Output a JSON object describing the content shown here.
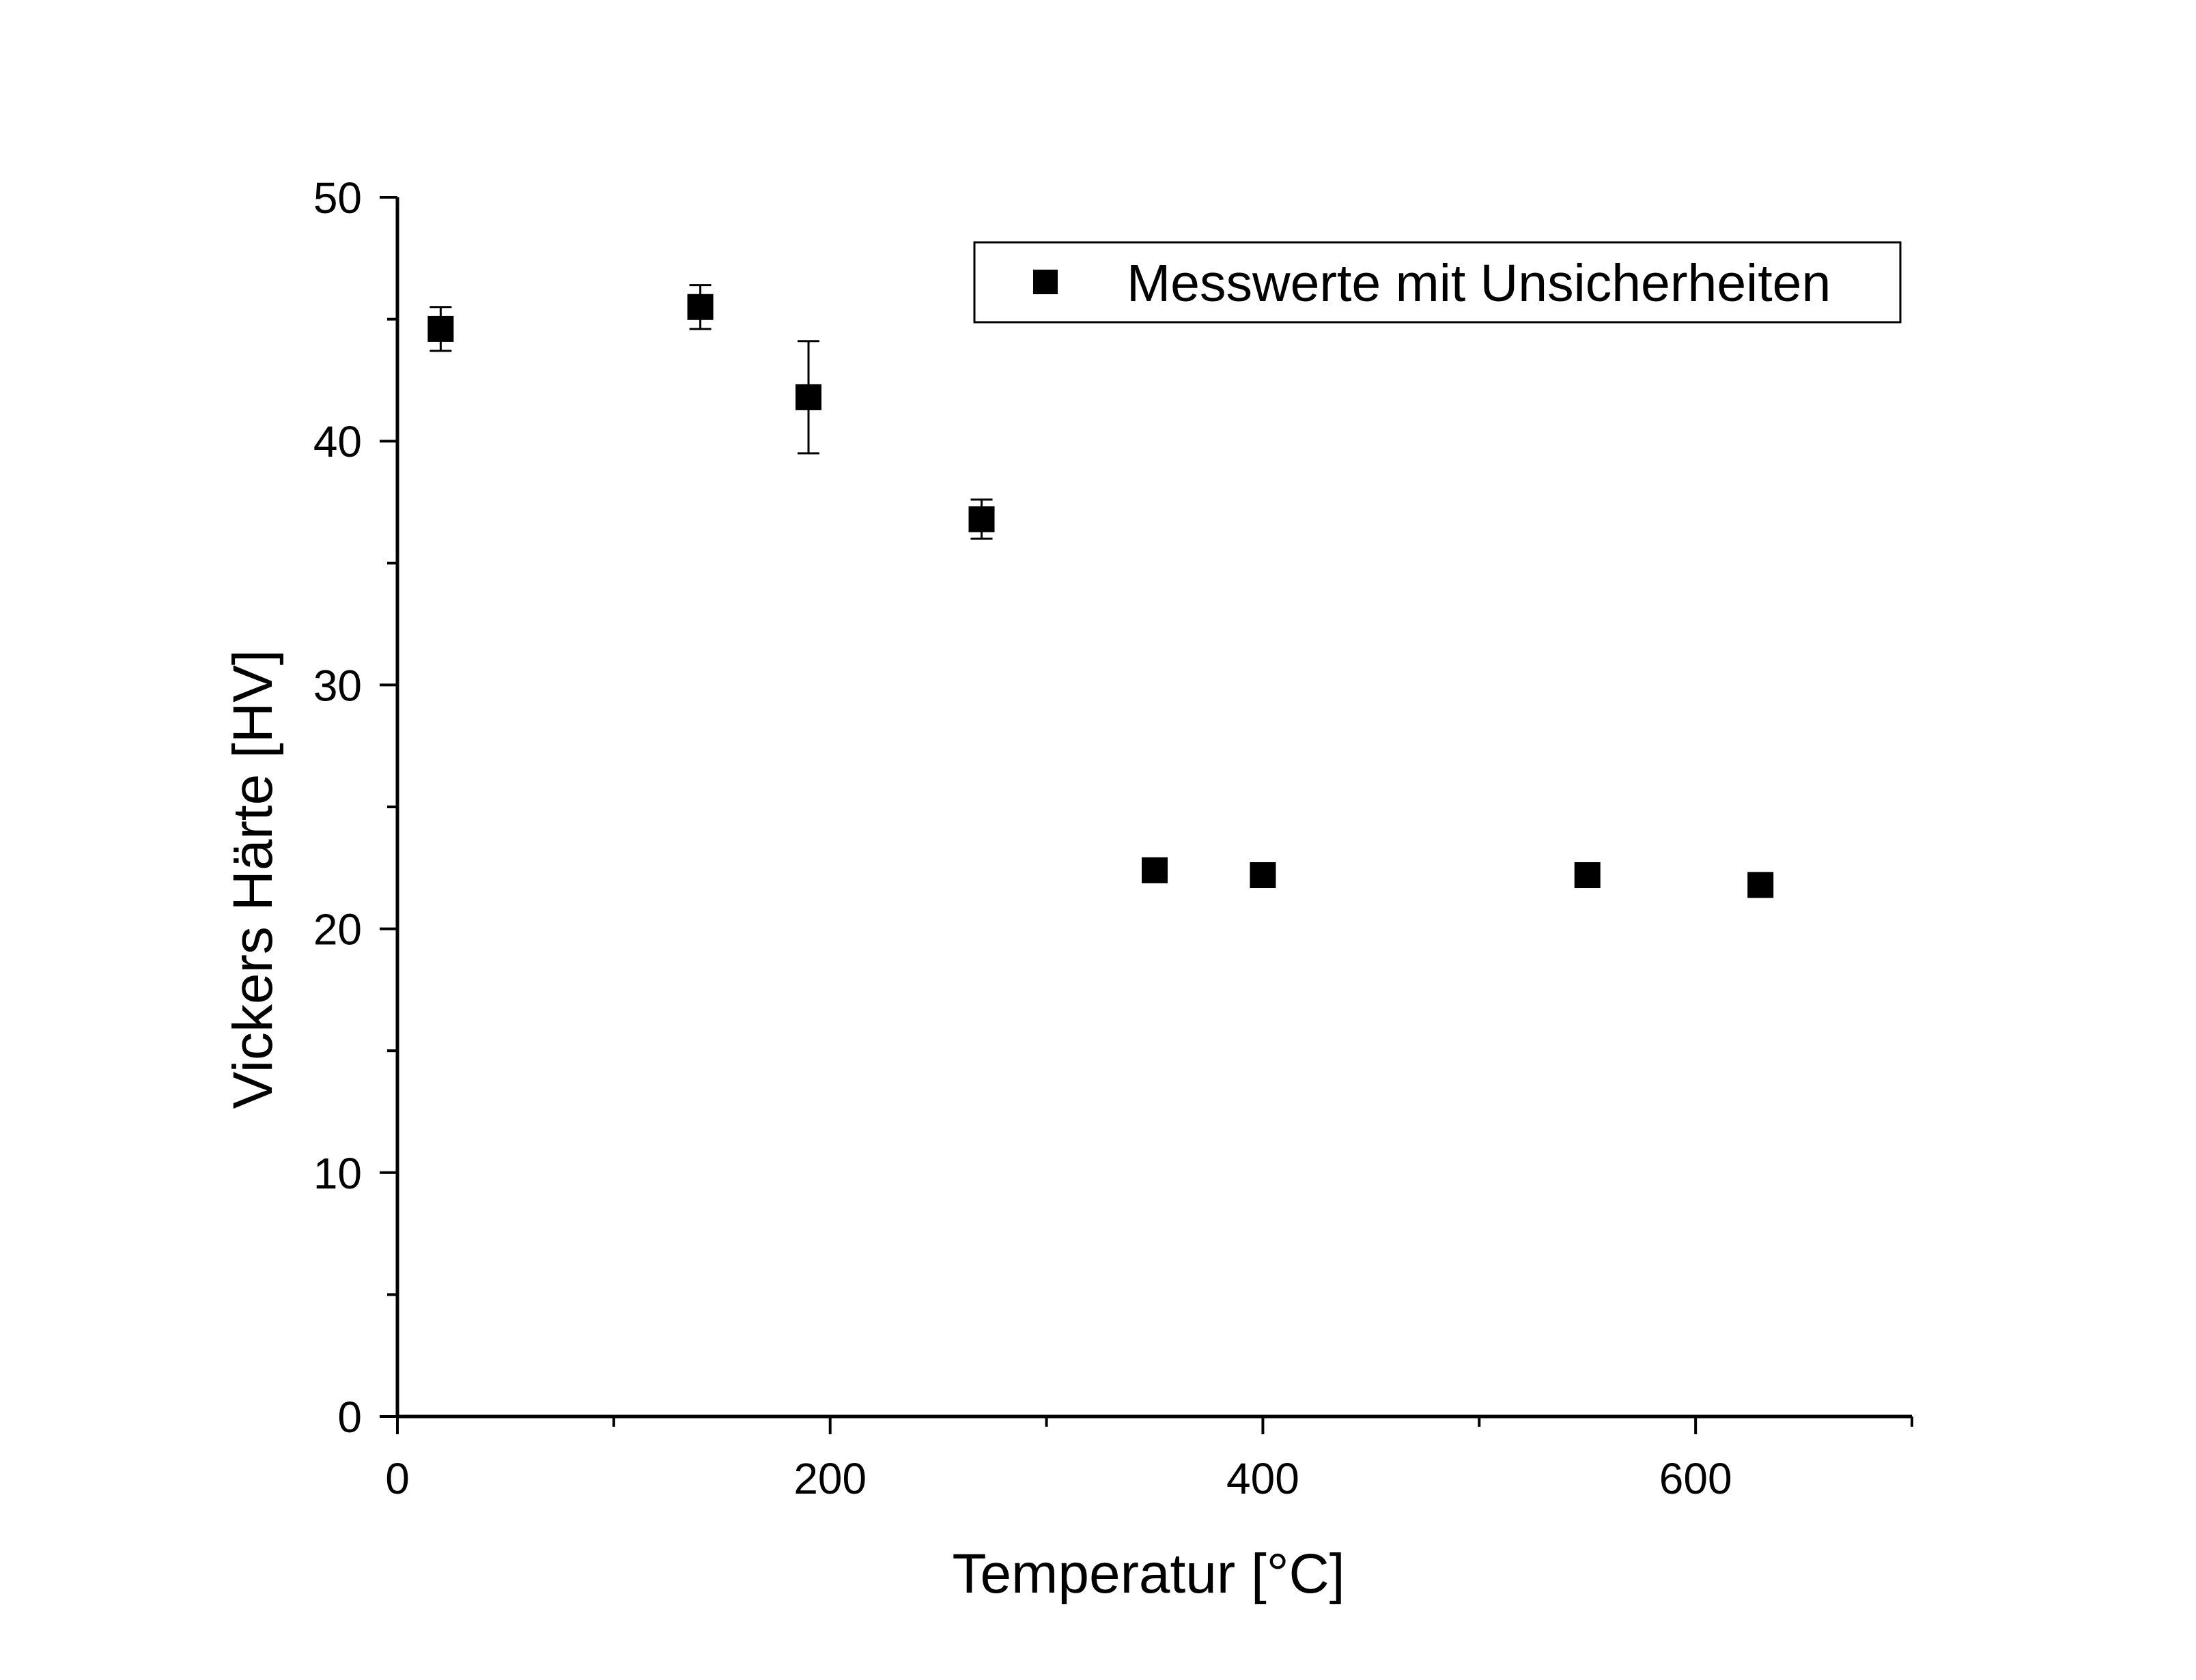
{
  "chart_data": {
    "type": "scatter",
    "title": "",
    "xlabel": "Temperatur [°C]",
    "ylabel": "Vickers Härte [HV]",
    "xlim": [
      0,
      700
    ],
    "ylim": [
      0,
      50
    ],
    "x_ticks": [
      "0",
      "200",
      "400",
      "600"
    ],
    "y_ticks": [
      "0",
      "10",
      "20",
      "30",
      "40",
      "50"
    ],
    "grid": false,
    "legend_position": "top-right",
    "series": [
      {
        "name": "Messwerte mit Unsicherheiten",
        "marker": "square",
        "color": "#000000",
        "points": [
          {
            "x": 20,
            "y": 44.6,
            "err": 0.9
          },
          {
            "x": 140,
            "y": 45.5,
            "err": 0.9
          },
          {
            "x": 190,
            "y": 41.8,
            "err": 2.3
          },
          {
            "x": 270,
            "y": 36.8,
            "err": 0.8
          },
          {
            "x": 350,
            "y": 22.4,
            "err": 0.3
          },
          {
            "x": 400,
            "y": 22.2,
            "err": 0.3
          },
          {
            "x": 550,
            "y": 22.2,
            "err": 0.3
          },
          {
            "x": 630,
            "y": 21.8,
            "err": 0.3
          }
        ]
      }
    ]
  }
}
